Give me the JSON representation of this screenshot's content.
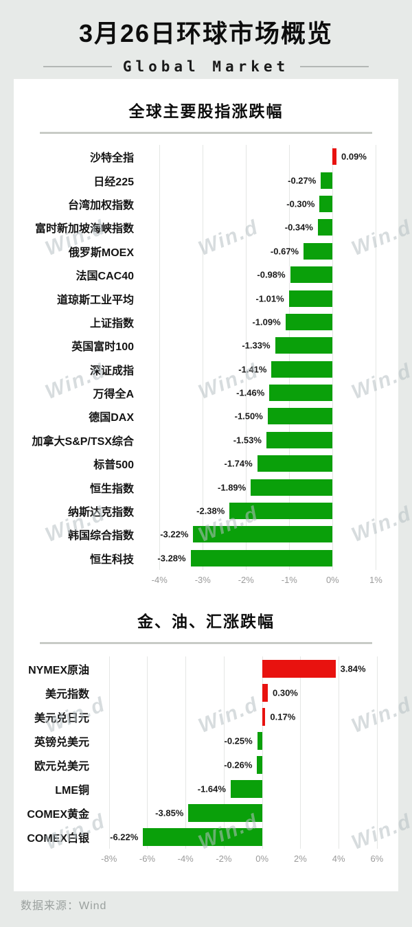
{
  "page": {
    "title": "3月26日环球市场概览",
    "subtitle": "Global Market",
    "source": "数据来源：Wind",
    "watermark_text": "Win.d",
    "colors": {
      "up_red": "#e8120f",
      "down_green": "#0aa00a",
      "grid": "#e4e6e4",
      "tick_text": "#9a9a9a",
      "divider": "#c8cbc6",
      "card_bg": "#ffffff",
      "page_bg": "#e7eae8"
    }
  },
  "chart_data": [
    {
      "type": "bar",
      "orientation": "horizontal",
      "title": "全球主要股指涨跌幅",
      "value_unit": "%",
      "grid": true,
      "xlim": [
        -4.4,
        1.2
      ],
      "xticks": [
        -4,
        -3,
        -2,
        -1,
        0,
        1
      ],
      "xtick_labels": [
        "-4%",
        "-3%",
        "-2%",
        "-1%",
        "0%",
        "1%"
      ],
      "categories": [
        "沙特全指",
        "日经225",
        "台湾加权指数",
        "富时新加坡海峡指数",
        "俄罗斯MOEX",
        "法国CAC40",
        "道琼斯工业平均",
        "上证指数",
        "英国富时100",
        "深证成指",
        "万得全A",
        "德国DAX",
        "加拿大S&P/TSX综合",
        "标普500",
        "恒生指数",
        "纳斯达克指数",
        "韩国综合指数",
        "恒生科技"
      ],
      "values": [
        0.09,
        -0.27,
        -0.3,
        -0.34,
        -0.67,
        -0.98,
        -1.01,
        -1.09,
        -1.33,
        -1.41,
        -1.46,
        -1.5,
        -1.53,
        -1.74,
        -1.89,
        -2.38,
        -3.22,
        -3.28
      ],
      "value_labels": [
        "0.09%",
        "-0.27%",
        "-0.30%",
        "-0.34%",
        "-0.67%",
        "-0.98%",
        "-1.01%",
        "-1.09%",
        "-1.33%",
        "-1.41%",
        "-1.46%",
        "-1.50%",
        "-1.53%",
        "-1.74%",
        "-1.89%",
        "-2.38%",
        "-3.22%",
        "-3.28%"
      ]
    },
    {
      "type": "bar",
      "orientation": "horizontal",
      "title": "金、油、汇涨跌幅",
      "value_unit": "%",
      "grid": true,
      "xlim": [
        -8.6,
        6.4
      ],
      "xticks": [
        -8,
        -6,
        -4,
        -2,
        0,
        2,
        4,
        6
      ],
      "xtick_labels": [
        "-8%",
        "-6%",
        "-4%",
        "-2%",
        "0%",
        "2%",
        "4%",
        "6%"
      ],
      "categories": [
        "NYMEX原油",
        "美元指数",
        "美元兑日元",
        "英镑兑美元",
        "欧元兑美元",
        "LME铜",
        "COMEX黄金",
        "COMEX白银"
      ],
      "values": [
        3.84,
        0.3,
        0.17,
        -0.25,
        -0.26,
        -1.64,
        -3.85,
        -6.22
      ],
      "value_labels": [
        "3.84%",
        "0.30%",
        "0.17%",
        "-0.25%",
        "-0.26%",
        "-1.64%",
        "-3.85%",
        "-6.22%"
      ]
    }
  ]
}
